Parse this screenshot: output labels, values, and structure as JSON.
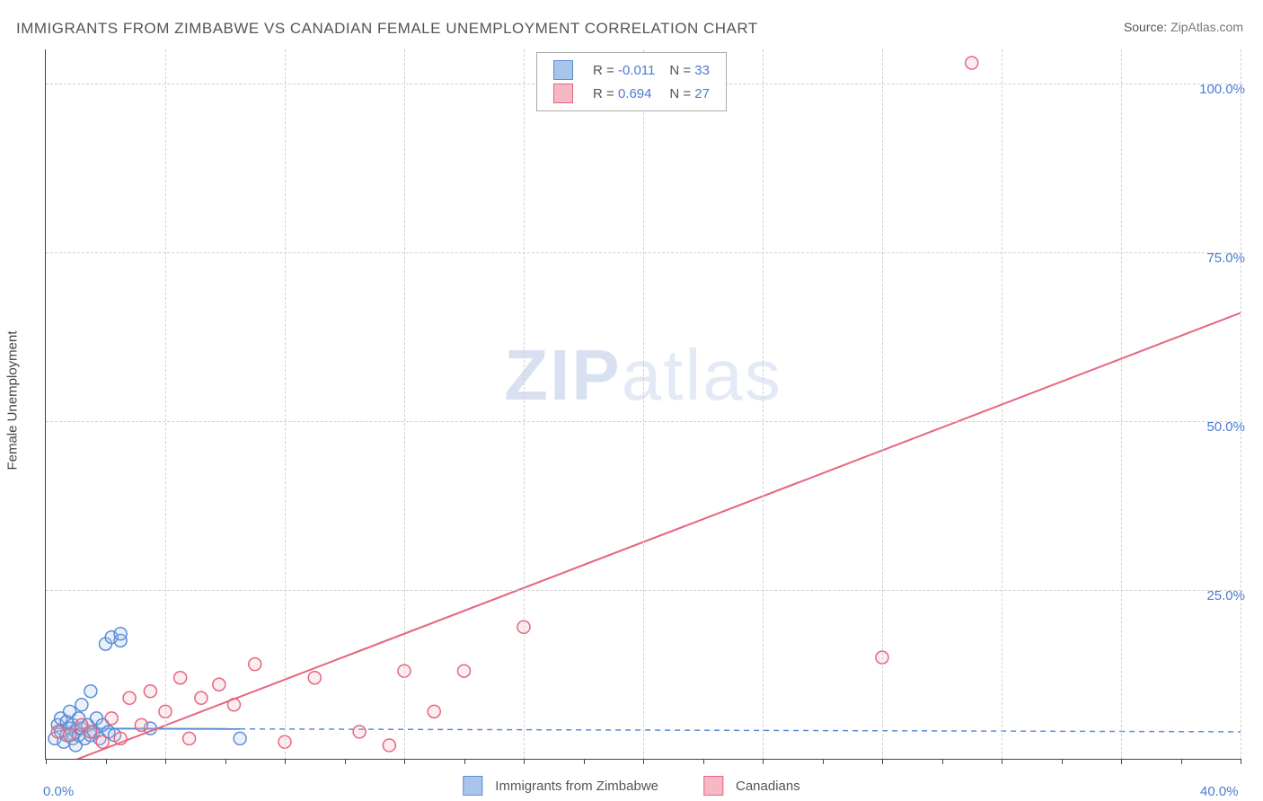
{
  "title": "IMMIGRANTS FROM ZIMBABWE VS CANADIAN FEMALE UNEMPLOYMENT CORRELATION CHART",
  "source_label": "Source:",
  "source_value": "ZipAtlas.com",
  "ylabel": "Female Unemployment",
  "watermark": {
    "part1": "ZIP",
    "part2": "atlas"
  },
  "chart": {
    "type": "scatter",
    "xlim": [
      0,
      40
    ],
    "ylim": [
      0,
      105
    ],
    "xtick_labels": {
      "0": "0.0%",
      "40": "40.0%"
    },
    "ytick_labels": {
      "25": "25.0%",
      "50": "50.0%",
      "75": "75.0%",
      "100": "100.0%"
    },
    "xtick_positions": [
      0,
      2,
      4,
      6,
      8,
      10,
      12,
      14,
      16,
      18,
      20,
      22,
      24,
      26,
      28,
      30,
      32,
      34,
      36,
      38,
      40
    ],
    "grid_v_positions": [
      4,
      8,
      12,
      16,
      20,
      24,
      28,
      32,
      36,
      40
    ],
    "grid_h_positions": [
      25,
      50,
      75,
      100
    ],
    "grid_color": "#d0d0d0",
    "axis_color": "#444444",
    "background_color": "#ffffff",
    "marker_radius": 7,
    "marker_stroke_width": 1.5,
    "marker_fill_opacity": 0.25,
    "trend_line_width": 2,
    "trend_dash": "6,5"
  },
  "series": [
    {
      "name": "Immigrants from Zimbabwe",
      "color_stroke": "#5b8dd6",
      "color_fill": "#a9c5ec",
      "R": "-0.011",
      "N": "33",
      "trend": {
        "x1": 0.2,
        "y1": 4.5,
        "x2": 40,
        "y2": 4.0,
        "solid_until_x": 6.5
      },
      "points": [
        [
          0.3,
          3
        ],
        [
          0.4,
          5
        ],
        [
          0.5,
          4
        ],
        [
          0.5,
          6
        ],
        [
          0.6,
          2.5
        ],
        [
          0.7,
          3.5
        ],
        [
          0.7,
          5.5
        ],
        [
          0.8,
          4.5
        ],
        [
          0.8,
          7
        ],
        [
          0.9,
          3
        ],
        [
          0.9,
          5
        ],
        [
          1.0,
          2
        ],
        [
          1.0,
          4
        ],
        [
          1.1,
          6
        ],
        [
          1.1,
          3.5
        ],
        [
          1.2,
          4.5
        ],
        [
          1.2,
          8
        ],
        [
          1.3,
          3
        ],
        [
          1.4,
          5
        ],
        [
          1.5,
          3.5
        ],
        [
          1.5,
          10
        ],
        [
          1.6,
          4
        ],
        [
          1.7,
          6
        ],
        [
          1.8,
          3
        ],
        [
          1.9,
          5
        ],
        [
          2.0,
          17
        ],
        [
          2.1,
          4
        ],
        [
          2.2,
          18
        ],
        [
          2.3,
          3.5
        ],
        [
          2.5,
          17.5
        ],
        [
          2.5,
          18.5
        ],
        [
          3.5,
          4.5
        ],
        [
          6.5,
          3
        ]
      ]
    },
    {
      "name": "Canadians",
      "color_stroke": "#e6667f",
      "color_fill": "#f5b8c5",
      "R": "0.694",
      "N": "27",
      "trend": {
        "x1": 0.5,
        "y1": -1,
        "x2": 40,
        "y2": 66,
        "solid_until_x": 40
      },
      "points": [
        [
          0.4,
          4
        ],
        [
          0.8,
          3.5
        ],
        [
          1.2,
          5
        ],
        [
          1.5,
          4
        ],
        [
          1.9,
          2.5
        ],
        [
          2.2,
          6
        ],
        [
          2.5,
          3
        ],
        [
          2.8,
          9
        ],
        [
          3.2,
          5
        ],
        [
          3.5,
          10
        ],
        [
          4.0,
          7
        ],
        [
          4.5,
          12
        ],
        [
          4.8,
          3
        ],
        [
          5.2,
          9
        ],
        [
          5.8,
          11
        ],
        [
          6.3,
          8
        ],
        [
          7.0,
          14
        ],
        [
          8.0,
          2.5
        ],
        [
          9.0,
          12
        ],
        [
          10.5,
          4
        ],
        [
          11.5,
          2
        ],
        [
          12.0,
          13
        ],
        [
          13.0,
          7
        ],
        [
          14.0,
          13
        ],
        [
          16.0,
          19.5
        ],
        [
          28.0,
          15
        ],
        [
          31.0,
          103
        ]
      ]
    }
  ],
  "legend_bottom": [
    {
      "label": "Immigrants from Zimbabwe",
      "series": 0
    },
    {
      "label": "Canadians",
      "series": 1
    }
  ]
}
